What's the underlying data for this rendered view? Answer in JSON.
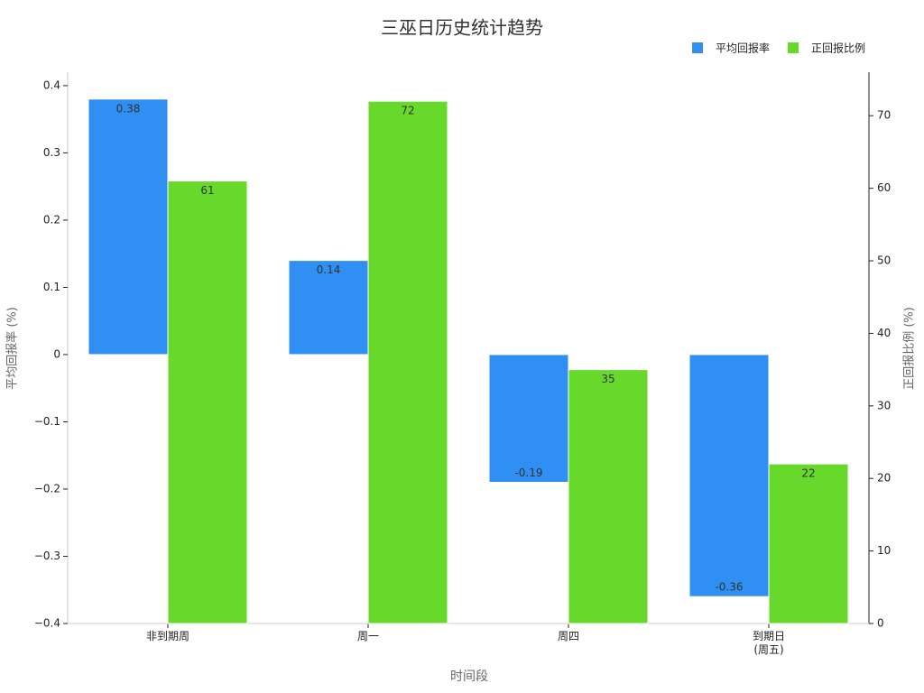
{
  "chart_data": {
    "type": "bar",
    "title": "三巫日历史统计趋势",
    "x_label": "时间段",
    "y_label": "平均回报率 (%)",
    "y2_label": "正回报比例 (%)",
    "categories": [
      "非到期周",
      "周一",
      "周四",
      "到期日\n(周五)"
    ],
    "series": [
      {
        "name": "平均回报率",
        "color": "#2f8ff2",
        "values": [
          0.38,
          0.14,
          -0.19,
          -0.36
        ]
      },
      {
        "name": "正回报比例",
        "color": "#66d92b",
        "axis": "y2",
        "values": [
          61,
          72,
          35,
          22
        ]
      }
    ],
    "ylim": [
      -0.4,
      0.42
    ],
    "yticks": [
      {
        "value": -0.4,
        "label": "−0.4"
      },
      {
        "value": -0.3,
        "label": "−0.3"
      },
      {
        "value": -0.2,
        "label": "−0.2"
      },
      {
        "value": -0.1,
        "label": "−0.1"
      },
      0,
      0.1,
      0.2,
      0.3,
      0.4
    ],
    "y2lim": [
      0,
      76
    ],
    "y2ticks": [
      0,
      10,
      20,
      30,
      40,
      50,
      60,
      70
    ],
    "legend": "top-right"
  }
}
